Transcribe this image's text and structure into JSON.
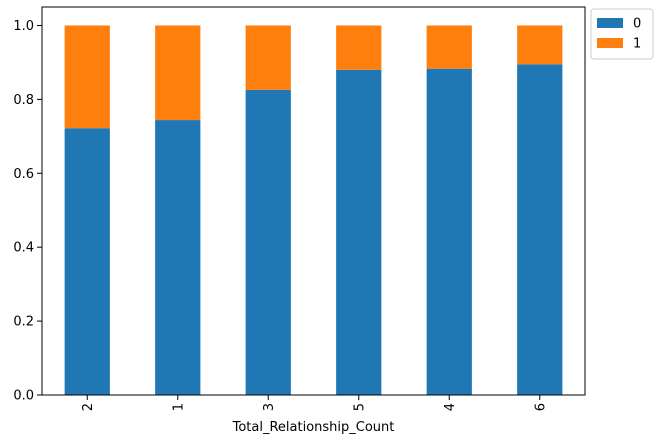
{
  "chart_data": {
    "type": "bar",
    "stacked": true,
    "title": "",
    "xlabel": "Total_Relationship_Count",
    "ylabel": "",
    "categories": [
      "2",
      "1",
      "3",
      "5",
      "4",
      "6"
    ],
    "series": [
      {
        "name": "0",
        "color": "#1f77b4",
        "values": [
          0.722,
          0.744,
          0.826,
          0.88,
          0.883,
          0.895
        ]
      },
      {
        "name": "1",
        "color": "#ff7f0e",
        "values": [
          0.278,
          0.256,
          0.174,
          0.12,
          0.117,
          0.105
        ]
      }
    ],
    "ylim": [
      0,
      1.05
    ],
    "yticks": [
      "0.0",
      "0.2",
      "0.4",
      "0.6",
      "0.8",
      "1.0"
    ],
    "grid": false,
    "legend_placement": "outside-top-right"
  }
}
